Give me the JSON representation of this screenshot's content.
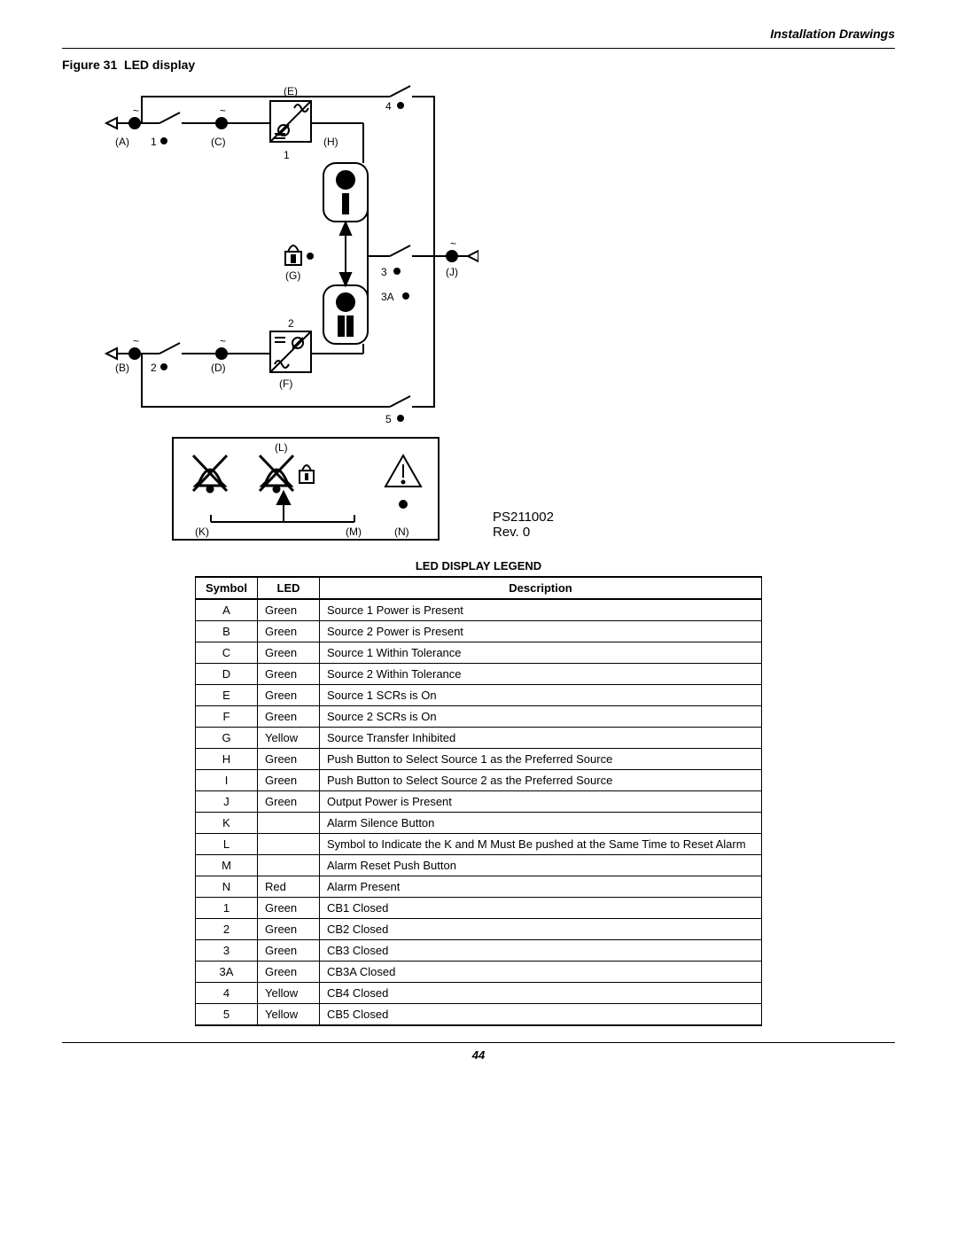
{
  "header": {
    "section": "Installation Drawings"
  },
  "figure": {
    "label": "Figure 31",
    "title": "LED display"
  },
  "part": {
    "number": "PS211002",
    "rev": "Rev. 0"
  },
  "legend": {
    "title": "LED DISPLAY LEGEND",
    "columns": [
      "Symbol",
      "LED",
      "Description"
    ],
    "rows": [
      {
        "symbol": "A",
        "led": "Green",
        "desc": "Source 1 Power is Present"
      },
      {
        "symbol": "B",
        "led": "Green",
        "desc": "Source 2 Power is Present"
      },
      {
        "symbol": "C",
        "led": "Green",
        "desc": "Source 1 Within Tolerance"
      },
      {
        "symbol": "D",
        "led": "Green",
        "desc": "Source 2 Within Tolerance"
      },
      {
        "symbol": "E",
        "led": "Green",
        "desc": "Source 1 SCRs is On"
      },
      {
        "symbol": "F",
        "led": "Green",
        "desc": "Source 2 SCRs is On"
      },
      {
        "symbol": "G",
        "led": "Yellow",
        "desc": "Source Transfer Inhibited"
      },
      {
        "symbol": "H",
        "led": "Green",
        "desc": "Push Button to Select Source 1 as the Preferred Source"
      },
      {
        "symbol": "I",
        "led": "Green",
        "desc": "Push Button to Select Source 2 as the Preferred Source"
      },
      {
        "symbol": "J",
        "led": "Green",
        "desc": "Output Power is Present"
      },
      {
        "symbol": "K",
        "led": "",
        "desc": "Alarm Silence Button"
      },
      {
        "symbol": "L",
        "led": "",
        "desc": "Symbol to Indicate the K and M Must Be pushed at the Same Time to Reset Alarm"
      },
      {
        "symbol": "M",
        "led": "",
        "desc": "Alarm Reset Push Button"
      },
      {
        "symbol": "N",
        "led": "Red",
        "desc": "Alarm Present"
      },
      {
        "symbol": "1",
        "led": "Green",
        "desc": "CB1 Closed"
      },
      {
        "symbol": "2",
        "led": "Green",
        "desc": "CB2 Closed"
      },
      {
        "symbol": "3",
        "led": "Green",
        "desc": "CB3 Closed"
      },
      {
        "symbol": "3A",
        "led": "Green",
        "desc": "CB3A Closed"
      },
      {
        "symbol": "4",
        "led": "Yellow",
        "desc": "CB4 Closed"
      },
      {
        "symbol": "5",
        "led": "Yellow",
        "desc": "CB5 Closed"
      }
    ]
  },
  "diagram": {
    "labels": {
      "A": "(A)",
      "B": "(B)",
      "C": "(C)",
      "D": "(D)",
      "E": "(E)",
      "F": "(F)",
      "G": "(G)",
      "H": "(H)",
      "J": "(J)",
      "K": "(K)",
      "L": "(L)",
      "M": "(M)",
      "N": "(N)",
      "n1": "1",
      "n1b": "1",
      "n2": "2",
      "n2b": "2",
      "n3": "3",
      "n3A": "3A",
      "n4": "4",
      "n5": "5"
    },
    "colors": {
      "stroke": "#000000",
      "fill_black": "#000000",
      "fill_white": "#ffffff"
    }
  },
  "page": {
    "number": "44"
  }
}
